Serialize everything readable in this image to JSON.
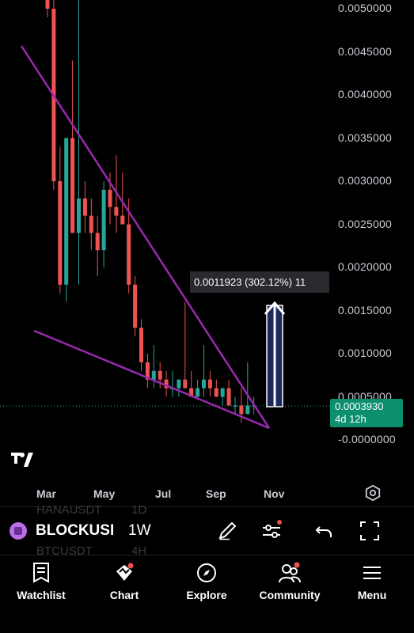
{
  "chart_data": {
    "type": "candlestick",
    "y_ticks": [
      "0.0050000",
      "0.0045000",
      "0.0040000",
      "0.0035000",
      "0.0030000",
      "0.0025000",
      "0.0020000",
      "0.0015000",
      "0.0010000",
      "0.0005000",
      "-0.0000000"
    ],
    "x_ticks": [
      "Mar",
      "May",
      "Jul",
      "Sep",
      "Nov"
    ],
    "ylim": [
      -2e-05,
      0.0051
    ],
    "current_price": "0.0003930",
    "countdown": "4d 12h",
    "measure_label": "0.0011923 (302.12%) 11",
    "colors": {
      "up": "#26a69a",
      "down": "#ef5350",
      "pattern": "#9c27b0",
      "measure": "#1e2a5a",
      "price_line": "#26a69a"
    },
    "candles": [
      [
        0.0052,
        0.0055,
        0.0049,
        0.005
      ],
      [
        0.005,
        0.0051,
        0.0029,
        0.003
      ],
      [
        0.003,
        0.0034,
        0.0017,
        0.0018
      ],
      [
        0.0018,
        0.0035,
        0.0016,
        0.0035
      ],
      [
        0.0035,
        0.0044,
        0.0024,
        0.0024
      ],
      [
        0.0024,
        0.0052,
        0.0018,
        0.0028
      ],
      [
        0.0028,
        0.003,
        0.0024,
        0.0026
      ],
      [
        0.0026,
        0.0028,
        0.0022,
        0.0024
      ],
      [
        0.0024,
        0.0026,
        0.0019,
        0.0022
      ],
      [
        0.0022,
        0.003,
        0.002,
        0.0029
      ],
      [
        0.0029,
        0.0031,
        0.0025,
        0.0027
      ],
      [
        0.0027,
        0.0033,
        0.0024,
        0.0026
      ],
      [
        0.0026,
        0.0031,
        0.0025,
        0.0025
      ],
      [
        0.0025,
        0.0028,
        0.0017,
        0.0018
      ],
      [
        0.0018,
        0.0019,
        0.0012,
        0.0013
      ],
      [
        0.0013,
        0.0014,
        0.0008,
        0.0009
      ],
      [
        0.0009,
        0.001,
        0.0006,
        0.0007
      ],
      [
        0.0007,
        0.0011,
        0.0006,
        0.0008
      ],
      [
        0.0008,
        0.0009,
        0.0006,
        0.0007
      ],
      [
        0.0007,
        0.0008,
        0.0005,
        0.0006
      ],
      [
        0.0006,
        0.0008,
        0.0005,
        0.0006
      ],
      [
        0.0006,
        0.0007,
        0.0005,
        0.0007
      ],
      [
        0.0007,
        0.0016,
        0.0006,
        0.0006
      ],
      [
        0.0006,
        0.0008,
        0.0005,
        0.0005
      ],
      [
        0.0005,
        0.0007,
        0.0005,
        0.0006
      ],
      [
        0.0006,
        0.0011,
        0.0005,
        0.0007
      ],
      [
        0.0007,
        0.0008,
        0.0005,
        0.0006
      ],
      [
        0.0006,
        0.0007,
        0.0005,
        0.0005
      ],
      [
        0.0005,
        0.0006,
        0.0004,
        0.0006
      ],
      [
        0.0006,
        0.0007,
        0.0004,
        0.0004
      ],
      [
        0.0004,
        0.0005,
        0.0003,
        0.0004
      ],
      [
        0.0004,
        0.0006,
        0.0002,
        0.0003
      ],
      [
        0.0003,
        0.0009,
        0.0003,
        0.0004
      ],
      [
        0.0004,
        0.0005,
        0.0003,
        0.0004
      ]
    ]
  },
  "toolbar": {
    "symbol": "BLOCKUSDT",
    "interval": "1W",
    "ghost_symbol_top": "HANAUSDT",
    "ghost_interval_top": "1D",
    "ghost_symbol_bottom": "BTCUSDT",
    "ghost_interval_bottom": "4H"
  },
  "nav": [
    {
      "label": "Watchlist"
    },
    {
      "label": "Chart"
    },
    {
      "label": "Explore"
    },
    {
      "label": "Community"
    },
    {
      "label": "Menu"
    }
  ]
}
